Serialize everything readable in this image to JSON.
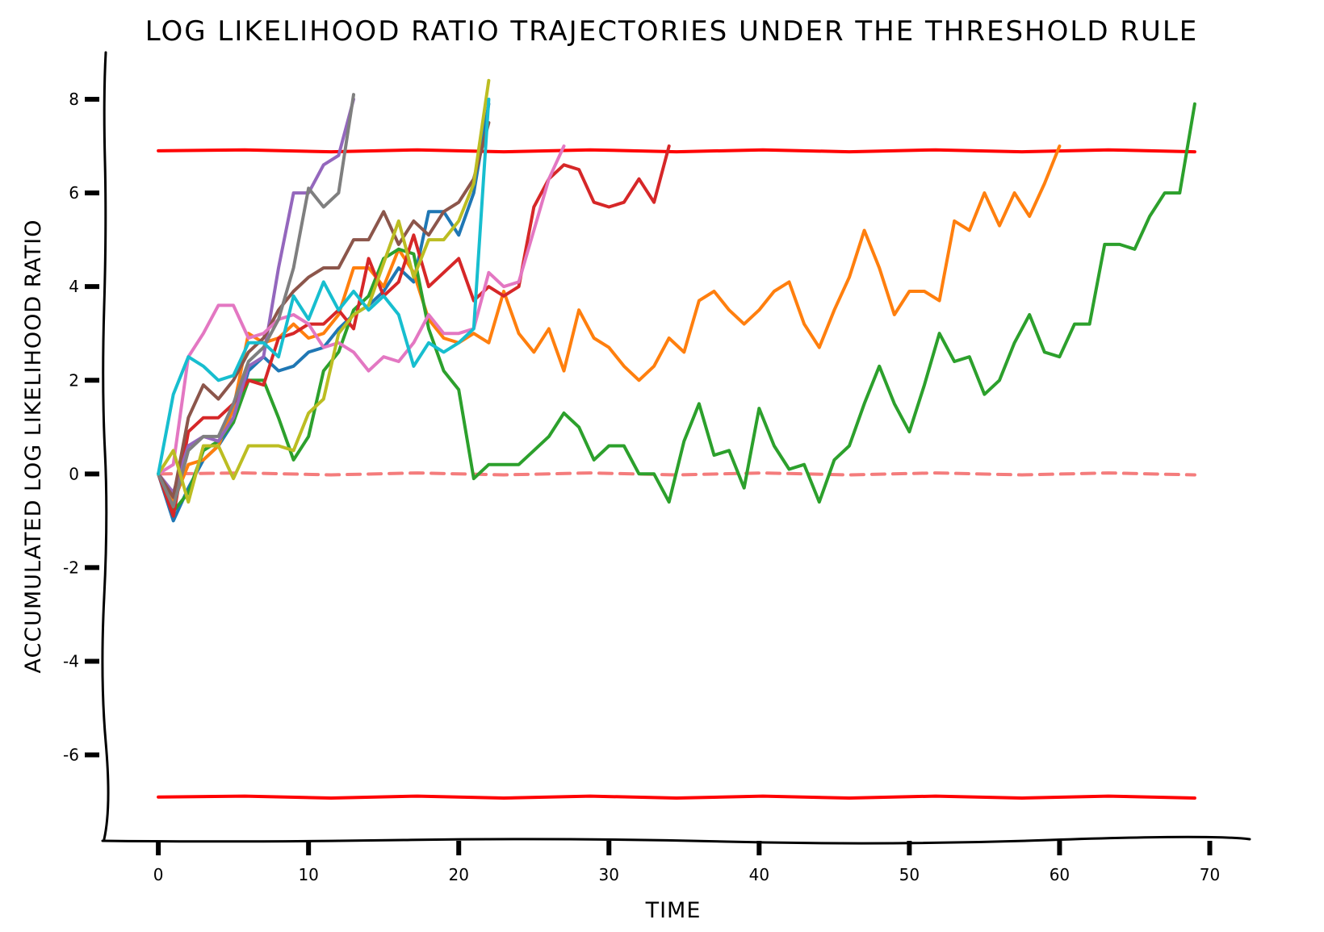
{
  "chart_data": {
    "type": "line",
    "title": "LOG LIKELIHOOD RATIO TRAJECTORIES UNDER THE THRESHOLD RULE",
    "xlabel": "TIME",
    "ylabel": "ACCUMULATED LOG LIKELIHOOD RATIO",
    "xlim": [
      -3.5,
      72.5
    ],
    "ylim": [
      -7.8,
      9.0
    ],
    "xticks": [
      "0",
      "10",
      "20",
      "30",
      "40",
      "50",
      "60",
      "70"
    ],
    "yticks": [
      "-6",
      "-4",
      "-2",
      "0",
      "2",
      "4",
      "6",
      "8"
    ],
    "legend": "none",
    "grid": false,
    "thresholds": [
      {
        "value": 6.9,
        "style": "solid",
        "color": "#ff0000",
        "x_range": [
          0,
          69
        ]
      },
      {
        "value": -6.9,
        "style": "solid",
        "color": "#ff0000",
        "x_range": [
          0,
          69
        ]
      },
      {
        "value": 0,
        "style": "dashed",
        "color": "#f47c7c",
        "x_range": [
          0,
          69
        ]
      }
    ],
    "series": [
      {
        "color": "#1f77b4",
        "x": [
          0,
          1,
          2,
          3,
          4,
          5,
          6,
          7,
          8,
          9,
          10,
          11,
          12,
          13,
          14,
          15,
          16,
          17,
          18,
          19,
          20,
          21,
          22
        ],
        "values": [
          0,
          -1.0,
          -0.3,
          0.3,
          0.6,
          1.1,
          2.2,
          2.5,
          2.2,
          2.3,
          2.6,
          2.7,
          3.1,
          3.4,
          3.6,
          3.9,
          4.4,
          4.1,
          5.6,
          5.6,
          5.1,
          6.0,
          7.9
        ]
      },
      {
        "color": "#ff7f0e",
        "x": [
          0,
          1,
          2,
          3,
          4,
          5,
          6,
          7,
          8,
          9,
          10,
          11,
          12,
          13,
          14,
          15,
          16,
          17,
          18,
          19,
          20,
          21,
          22,
          23,
          24,
          25,
          26,
          27,
          28,
          29,
          30,
          31,
          32,
          33,
          34,
          35,
          36,
          37,
          38,
          39,
          40,
          41,
          42,
          43,
          44,
          45,
          46,
          47,
          48,
          49,
          50,
          51,
          52,
          53,
          54,
          55,
          56,
          57,
          58,
          59,
          60
        ],
        "values": [
          0,
          -0.6,
          0.2,
          0.3,
          0.6,
          1.4,
          3.0,
          2.8,
          2.9,
          3.2,
          2.9,
          3.0,
          3.4,
          4.4,
          4.4,
          4.0,
          4.8,
          4.3,
          3.3,
          2.9,
          2.8,
          3.0,
          2.8,
          3.9,
          3.0,
          2.6,
          3.1,
          2.2,
          3.5,
          2.9,
          2.7,
          2.3,
          2.0,
          2.3,
          2.9,
          2.6,
          3.7,
          3.9,
          3.5,
          3.2,
          3.5,
          3.9,
          4.1,
          3.2,
          2.7,
          3.5,
          4.2,
          5.2,
          4.4,
          3.4,
          3.9,
          3.9,
          3.7,
          5.4,
          5.2,
          6.0,
          5.3,
          6.0,
          5.5,
          6.2,
          7.0
        ]
      },
      {
        "color": "#2ca02c",
        "x": [
          0,
          1,
          2,
          3,
          4,
          5,
          6,
          7,
          8,
          9,
          10,
          11,
          12,
          13,
          14,
          15,
          16,
          17,
          18,
          19,
          20,
          21,
          22,
          23,
          24,
          25,
          26,
          27,
          28,
          29,
          30,
          31,
          32,
          33,
          34,
          35,
          36,
          37,
          38,
          39,
          40,
          41,
          42,
          43,
          44,
          45,
          46,
          47,
          48,
          49,
          50,
          51,
          52,
          53,
          54,
          55,
          56,
          57,
          58,
          59,
          60,
          61,
          62,
          63,
          64,
          65,
          66,
          67,
          68,
          69
        ],
        "values": [
          0,
          -0.8,
          -0.4,
          0.5,
          0.7,
          1.1,
          2.0,
          2.0,
          1.2,
          0.3,
          0.8,
          2.2,
          2.6,
          3.5,
          3.8,
          4.6,
          4.8,
          4.7,
          3.1,
          2.2,
          1.8,
          -0.1,
          0.2,
          0.2,
          0.2,
          0.5,
          0.8,
          1.3,
          1.0,
          0.3,
          0.6,
          0.6,
          0.0,
          0.0,
          -0.6,
          0.7,
          1.5,
          0.4,
          0.5,
          -0.3,
          1.4,
          0.6,
          0.1,
          0.2,
          -0.6,
          0.3,
          0.6,
          1.5,
          2.3,
          1.5,
          0.9,
          1.9,
          3.0,
          2.4,
          2.5,
          1.7,
          2.0,
          2.8,
          3.4,
          2.6,
          2.5,
          3.2,
          3.2,
          4.9,
          4.9,
          4.8,
          5.5,
          6.0,
          6.0,
          7.9
        ]
      },
      {
        "color": "#d62728",
        "x": [
          0,
          1,
          2,
          3,
          4,
          5,
          6,
          7,
          8,
          9,
          10,
          11,
          12,
          13,
          14,
          15,
          16,
          17,
          18,
          19,
          20,
          21,
          22,
          23,
          24,
          25,
          26,
          27,
          28,
          29,
          30,
          31,
          32,
          33,
          34
        ],
        "values": [
          0,
          -0.9,
          0.9,
          1.2,
          1.2,
          1.5,
          2.0,
          1.9,
          2.9,
          3.0,
          3.2,
          3.2,
          3.5,
          3.1,
          4.6,
          3.8,
          4.1,
          5.1,
          4.0,
          4.3,
          4.6,
          3.7,
          4.0,
          3.8,
          4.0,
          5.7,
          6.3,
          6.6,
          6.5,
          5.8,
          5.7,
          5.8,
          6.3,
          5.8,
          7.0
        ]
      },
      {
        "color": "#9467bd",
        "x": [
          0,
          1,
          2,
          3,
          4,
          5,
          6,
          7,
          8,
          9,
          10,
          11,
          12,
          13
        ],
        "values": [
          0,
          -0.4,
          0.6,
          0.8,
          0.7,
          1.2,
          2.3,
          2.5,
          4.4,
          6.0,
          6.0,
          6.6,
          6.8,
          8.0
        ]
      },
      {
        "color": "#8c564b",
        "x": [
          0,
          1,
          2,
          3,
          4,
          5,
          6,
          7,
          8,
          9,
          10,
          11,
          12,
          13,
          14,
          15,
          16,
          17,
          18,
          19,
          20,
          21,
          22
        ],
        "values": [
          0,
          -0.5,
          1.2,
          1.9,
          1.6,
          2.0,
          2.6,
          2.9,
          3.5,
          3.9,
          4.2,
          4.4,
          4.4,
          5.0,
          5.0,
          5.6,
          4.9,
          5.4,
          5.1,
          5.6,
          5.8,
          6.3,
          7.5
        ]
      },
      {
        "color": "#e377c2",
        "x": [
          0,
          1,
          2,
          3,
          4,
          5,
          6,
          7,
          8,
          9,
          10,
          11,
          12,
          13,
          14,
          15,
          16,
          17,
          18,
          19,
          20,
          21,
          22,
          23,
          24,
          25,
          26,
          27
        ],
        "values": [
          0,
          0.2,
          2.5,
          3.0,
          3.6,
          3.6,
          2.9,
          3.0,
          3.3,
          3.4,
          3.2,
          2.7,
          2.8,
          2.6,
          2.2,
          2.5,
          2.4,
          2.8,
          3.4,
          3.0,
          3.0,
          3.1,
          4.3,
          4.0,
          4.1,
          5.2,
          6.3,
          7.0
        ]
      },
      {
        "color": "#7f7f7f",
        "x": [
          0,
          1,
          2,
          3,
          4,
          5,
          6,
          7,
          8,
          9,
          10,
          11,
          12,
          13
        ],
        "values": [
          0,
          -0.7,
          0.5,
          0.8,
          0.8,
          1.5,
          2.4,
          2.7,
          3.3,
          4.4,
          6.1,
          5.7,
          6.0,
          8.1
        ]
      },
      {
        "color": "#bcbd22",
        "x": [
          0,
          1,
          2,
          3,
          4,
          5,
          6,
          7,
          8,
          9,
          10,
          11,
          12,
          13,
          14,
          15,
          16,
          17,
          18,
          19,
          20,
          21,
          22
        ],
        "values": [
          0,
          0.5,
          -0.6,
          0.6,
          0.6,
          -0.1,
          0.6,
          0.6,
          0.6,
          0.5,
          1.3,
          1.6,
          3.0,
          3.4,
          3.6,
          4.5,
          5.4,
          4.2,
          5.0,
          5.0,
          5.4,
          6.2,
          8.4
        ]
      },
      {
        "color": "#17becf",
        "x": [
          0,
          1,
          2,
          3,
          4,
          5,
          6,
          7,
          8,
          9,
          10,
          11,
          12,
          13,
          14,
          15,
          16,
          17,
          18,
          19,
          20,
          21,
          22
        ],
        "values": [
          0,
          1.7,
          2.5,
          2.3,
          2.0,
          2.1,
          2.8,
          2.8,
          2.5,
          3.8,
          3.3,
          4.1,
          3.5,
          3.9,
          3.5,
          3.8,
          3.4,
          2.3,
          2.8,
          2.6,
          2.8,
          3.1,
          8.0
        ]
      }
    ]
  }
}
